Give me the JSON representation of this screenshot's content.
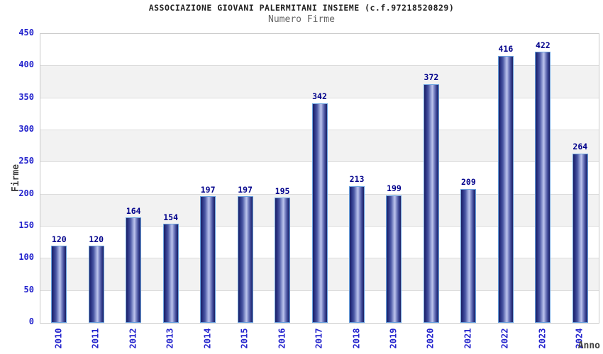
{
  "chart_data": {
    "type": "bar",
    "title": "ASSOCIAZIONE GIOVANI PALERMITANI INSIEME (c.f.97218520829)",
    "subtitle": "Numero Firme",
    "xlabel": "Anno",
    "ylabel": "Firme",
    "categories": [
      "2010",
      "2011",
      "2012",
      "2013",
      "2014",
      "2015",
      "2016",
      "2017",
      "2018",
      "2019",
      "2020",
      "2021",
      "2022",
      "2023",
      "2024"
    ],
    "values": [
      120,
      120,
      164,
      154,
      197,
      197,
      195,
      342,
      213,
      199,
      372,
      209,
      416,
      422,
      264
    ],
    "ylim": [
      0,
      450
    ],
    "yticks": [
      0,
      50,
      100,
      150,
      200,
      250,
      300,
      350,
      400,
      450
    ],
    "grid": "alternating-horizontal-bands",
    "legend": "none",
    "bar_value_labels": true
  },
  "colors": {
    "background": "#ffffff",
    "title_text": "#222222",
    "subtitle_text": "#666666",
    "axis_label_text": "#404040",
    "tick_label_text": "#2323cd",
    "bar_value_text": "#00008b",
    "bar_dark": "#1c2263",
    "bar_highlight": "#bcc4ec",
    "bar_border": "#6ba3e0",
    "band_gray": "#f2f2f2",
    "gridline": "#dcdcdc",
    "plot_border": "#c9c9c9"
  }
}
